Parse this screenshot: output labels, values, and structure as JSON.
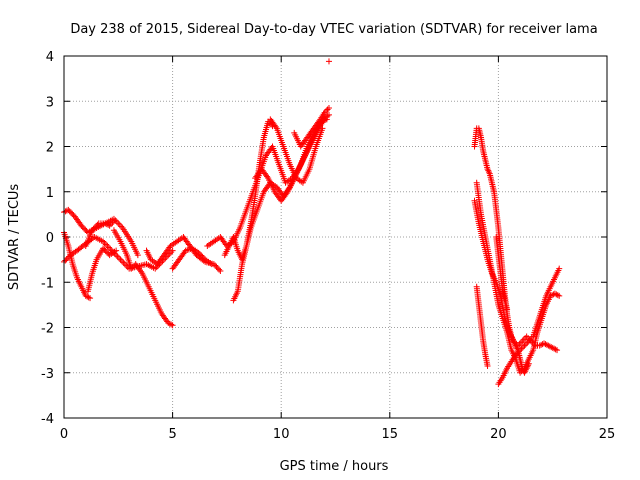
{
  "chart_data": {
    "type": "scatter",
    "title": "Day 238 of 2015, Sidereal Day-to-day VTEC variation (SDTVAR) for receiver lama",
    "xlabel": "GPS time / hours",
    "ylabel": "SDTVAR / TECUs",
    "xlim": [
      0,
      25
    ],
    "ylim": [
      -4,
      4
    ],
    "xticks": [
      0,
      5,
      10,
      15,
      20,
      25
    ],
    "yticks": [
      -4,
      -3,
      -2,
      -1,
      0,
      1,
      2,
      3,
      4
    ],
    "grid": true,
    "marker": "+",
    "series": [
      {
        "name": "SDTVAR",
        "color": "#ff0000",
        "tracks": [
          {
            "x": [
              0.0,
              0.2,
              0.5,
              0.8,
              1.1,
              1.5,
              1.9,
              2.3,
              2.7,
              3.1,
              3.4
            ],
            "y": [
              0.55,
              0.6,
              0.45,
              0.25,
              0.1,
              0.2,
              0.3,
              0.4,
              0.2,
              -0.1,
              -0.4
            ]
          },
          {
            "x": [
              0.0,
              0.2,
              0.4,
              0.6,
              0.8,
              1.0,
              1.2
            ],
            "y": [
              0.1,
              -0.2,
              -0.6,
              -0.9,
              -1.1,
              -1.3,
              -1.35
            ]
          },
          {
            "x": [
              0.0,
              0.3,
              0.6,
              1.0,
              1.4,
              1.8,
              2.2,
              2.6,
              3.0,
              3.4,
              3.8,
              4.2,
              4.6,
              5.0
            ],
            "y": [
              -0.55,
              -0.4,
              -0.3,
              -0.15,
              0.0,
              -0.1,
              -0.3,
              -0.5,
              -0.7,
              -0.65,
              -0.6,
              -0.7,
              -0.5,
              -0.3
            ]
          },
          {
            "x": [
              1.0,
              1.3,
              1.6,
              1.9,
              2.1,
              2.3
            ],
            "y": [
              -0.2,
              0.15,
              0.3,
              0.3,
              0.25,
              0.35
            ]
          },
          {
            "x": [
              1.1,
              1.3,
              1.5,
              1.8,
              2.1,
              2.4
            ],
            "y": [
              -1.2,
              -0.8,
              -0.5,
              -0.25,
              -0.4,
              -0.3
            ]
          },
          {
            "x": [
              2.3,
              2.6,
              2.9,
              3.1,
              3.3,
              3.6,
              3.9,
              4.2,
              4.5,
              4.8,
              5.0
            ],
            "y": [
              0.15,
              -0.1,
              -0.4,
              -0.7,
              -0.6,
              -0.8,
              -1.1,
              -1.4,
              -1.7,
              -1.9,
              -1.95
            ]
          },
          {
            "x": [
              3.8,
              4.0,
              4.3,
              4.6,
              4.9,
              5.2,
              5.5,
              5.8,
              6.1,
              6.5,
              6.9,
              7.2
            ],
            "y": [
              -0.3,
              -0.5,
              -0.6,
              -0.4,
              -0.2,
              -0.1,
              0.0,
              -0.2,
              -0.4,
              -0.55,
              -0.6,
              -0.75
            ]
          },
          {
            "x": [
              5.0,
              5.3,
              5.6,
              5.9,
              6.2,
              6.5,
              6.8
            ],
            "y": [
              -0.7,
              -0.5,
              -0.3,
              -0.25,
              -0.35,
              -0.5,
              -0.6
            ]
          },
          {
            "x": [
              6.6,
              6.9,
              7.2,
              7.5,
              7.8,
              8.1,
              8.4,
              8.7,
              9.0,
              9.3,
              9.6,
              9.9,
              10.2,
              10.5,
              10.8,
              11.1,
              11.4,
              11.7,
              12.0
            ],
            "y": [
              -0.2,
              -0.1,
              0.0,
              -0.2,
              -0.1,
              0.2,
              0.6,
              1.0,
              1.4,
              1.8,
              2.0,
              1.6,
              1.2,
              1.3,
              1.5,
              1.8,
              2.1,
              2.4,
              2.6
            ]
          },
          {
            "x": [
              7.4,
              7.6,
              7.8,
              8.0,
              8.2,
              8.4,
              8.6,
              8.8,
              9.0,
              9.2,
              9.4,
              9.6
            ],
            "y": [
              -0.4,
              -0.2,
              0.0,
              -0.3,
              -0.5,
              -0.2,
              0.3,
              0.9,
              1.6,
              2.2,
              2.55,
              2.45
            ]
          },
          {
            "x": [
              7.8,
              8.0,
              8.2,
              8.4,
              8.6,
              8.9,
              9.2,
              9.5,
              9.8,
              10.1,
              10.4,
              10.7,
              11.0,
              11.3,
              11.6,
              11.9,
              12.2
            ],
            "y": [
              -1.4,
              -1.2,
              -0.6,
              -0.2,
              0.2,
              0.6,
              1.0,
              1.2,
              1.1,
              0.9,
              1.1,
              1.4,
              1.7,
              2.0,
              2.3,
              2.6,
              2.7
            ]
          },
          {
            "x": [
              8.8,
              9.1,
              9.4,
              9.7,
              10.0,
              10.3,
              10.6,
              10.9,
              11.2,
              11.5,
              11.8,
              12.1
            ],
            "y": [
              1.3,
              1.5,
              1.3,
              1.0,
              0.8,
              1.0,
              1.3,
              1.6,
              2.0,
              2.3,
              2.55,
              2.6
            ]
          },
          {
            "x": [
              9.5,
              9.8,
              10.1,
              10.4,
              10.7,
              11.0,
              11.3,
              11.6,
              11.9
            ],
            "y": [
              2.6,
              2.4,
              2.0,
              1.6,
              1.3,
              1.2,
              1.5,
              2.0,
              2.4
            ]
          },
          {
            "x": [
              10.6,
              10.9,
              11.2,
              11.5,
              11.8,
              12.0,
              12.2
            ],
            "y": [
              2.3,
              2.0,
              2.2,
              2.4,
              2.6,
              2.75,
              2.85
            ]
          },
          {
            "x": [
              12.2
            ],
            "y": [
              3.88
            ]
          },
          {
            "x": [
              18.9,
              19.0,
              19.1,
              19.2,
              19.3,
              19.4,
              19.5,
              19.6,
              19.7,
              19.8,
              19.9,
              20.0,
              20.1,
              20.2,
              20.3,
              20.4,
              20.5,
              20.6,
              20.7,
              20.8,
              20.9,
              21.0,
              21.1,
              21.2,
              21.3,
              21.4
            ],
            "y": [
              2.0,
              2.4,
              2.4,
              2.2,
              1.9,
              1.7,
              1.5,
              1.4,
              1.2,
              1.0,
              0.6,
              0.2,
              -0.3,
              -0.8,
              -1.3,
              -1.7,
              -2.0,
              -2.2,
              -2.3,
              -2.4,
              -2.5,
              -2.7,
              -2.9,
              -3.0,
              -2.9,
              -2.8
            ]
          },
          {
            "x": [
              18.9,
              19.1,
              19.3,
              19.5,
              19.7,
              19.9,
              20.1,
              20.3,
              20.5,
              20.7,
              20.9,
              21.1,
              21.3,
              21.5,
              21.7,
              21.9,
              22.1,
              22.3,
              22.5,
              22.7
            ],
            "y": [
              0.8,
              0.3,
              -0.1,
              -0.5,
              -0.8,
              -1.0,
              -1.3,
              -1.8,
              -2.1,
              -2.3,
              -2.4,
              -2.3,
              -2.2,
              -2.3,
              -2.4,
              -2.4,
              -2.35,
              -2.4,
              -2.45,
              -2.5
            ]
          },
          {
            "x": [
              19.0,
              19.2,
              19.4,
              19.6,
              19.8,
              20.0,
              20.2,
              20.4,
              20.6,
              20.8,
              21.0,
              21.2,
              21.4,
              21.6,
              21.8,
              22.0,
              22.2,
              22.4,
              22.6,
              22.8
            ],
            "y": [
              1.2,
              0.5,
              0.0,
              -0.5,
              -1.0,
              -1.5,
              -1.8,
              -2.1,
              -2.5,
              -2.7,
              -3.0,
              -2.9,
              -2.7,
              -2.5,
              -2.1,
              -1.8,
              -1.5,
              -1.3,
              -1.25,
              -1.3
            ]
          },
          {
            "x": [
              19.0,
              19.1,
              19.2,
              19.3,
              19.4,
              19.5
            ],
            "y": [
              -1.1,
              -1.5,
              -1.9,
              -2.3,
              -2.6,
              -2.85
            ]
          },
          {
            "x": [
              20.0,
              20.2,
              20.4,
              20.6,
              20.8,
              21.0,
              21.2,
              21.4,
              21.6,
              21.8,
              22.0,
              22.2,
              22.4,
              22.6,
              22.8
            ],
            "y": [
              -3.25,
              -3.1,
              -2.9,
              -2.75,
              -2.6,
              -2.5,
              -2.4,
              -2.3,
              -2.2,
              -1.9,
              -1.6,
              -1.3,
              -1.1,
              -0.9,
              -0.7
            ]
          },
          {
            "x": [
              19.9,
              20.0,
              20.1,
              20.2,
              20.3,
              20.4
            ],
            "y": [
              0.0,
              -0.4,
              -0.8,
              -1.2,
              -1.4,
              -1.6
            ]
          }
        ]
      }
    ]
  }
}
